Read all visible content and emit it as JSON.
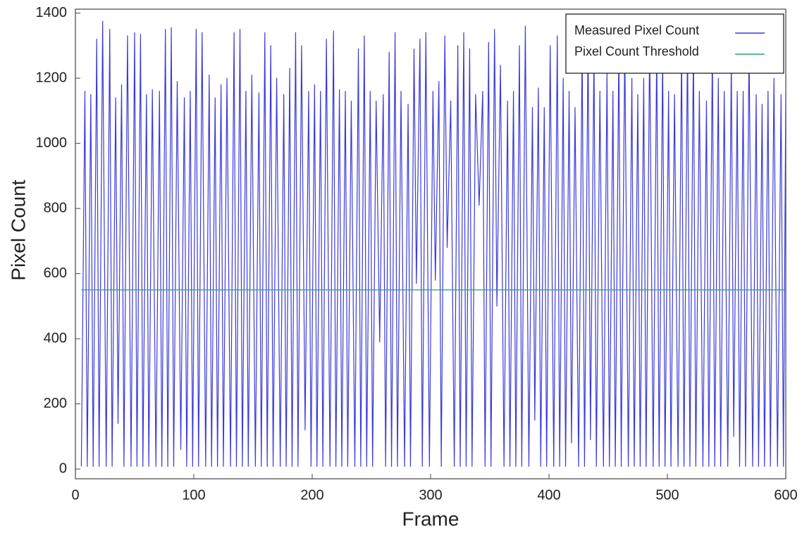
{
  "chart_data": {
    "type": "line",
    "xlabel": "Frame",
    "ylabel": "Pixel Count",
    "xlim": [
      0,
      600
    ],
    "ylim": [
      -30,
      1412
    ],
    "xticks": [
      0,
      100,
      200,
      300,
      400,
      500,
      600
    ],
    "yticks": [
      0,
      200,
      400,
      600,
      800,
      1000,
      1200,
      1400
    ],
    "grid": false,
    "legend": "upper right",
    "series": [
      {
        "name": "Measured Pixel Count",
        "color": "#3a3ad8",
        "x": [
          5,
          8,
          10,
          13,
          15,
          18,
          20,
          23,
          26,
          29,
          31,
          34,
          36,
          39,
          41,
          44,
          47,
          50,
          52,
          55,
          57,
          60,
          62,
          65,
          68,
          71,
          73,
          76,
          78,
          81,
          83,
          86,
          89,
          92,
          94,
          97,
          99,
          102,
          104,
          107,
          110,
          113,
          115,
          118,
          120,
          123,
          125,
          128,
          131,
          134,
          136,
          139,
          141,
          144,
          146,
          149,
          152,
          155,
          157,
          160,
          162,
          165,
          167,
          170,
          173,
          176,
          178,
          181,
          183,
          186,
          188,
          191,
          194,
          197,
          199,
          202,
          204,
          207,
          209,
          212,
          215,
          218,
          220,
          223,
          225,
          228,
          230,
          233,
          236,
          239,
          241,
          244,
          246,
          249,
          251,
          254,
          257,
          260,
          262,
          265,
          267,
          270,
          272,
          275,
          278,
          281,
          283,
          286,
          288,
          291,
          293,
          296,
          299,
          302,
          304,
          307,
          309,
          312,
          314,
          317,
          320,
          323,
          325,
          328,
          330,
          333,
          335,
          338,
          341,
          344,
          346,
          349,
          351,
          354,
          356,
          359,
          362,
          365,
          367,
          370,
          372,
          375,
          377,
          380,
          383,
          386,
          388,
          391,
          393,
          396,
          398,
          401,
          404,
          407,
          409,
          412,
          414,
          417,
          419,
          422,
          425,
          428,
          430,
          433,
          435,
          438,
          440,
          443,
          446,
          449,
          451,
          454,
          456,
          459,
          461,
          464,
          467,
          470,
          472,
          475,
          477,
          480,
          482,
          485,
          488,
          491,
          493,
          496,
          498,
          501,
          503,
          506,
          509,
          512,
          514,
          517,
          519,
          522,
          524,
          527,
          530,
          533,
          535,
          538,
          540,
          543,
          545,
          548,
          551,
          554,
          556,
          559,
          561,
          564,
          566,
          569,
          572,
          575,
          577,
          580,
          582,
          585,
          587,
          590,
          593,
          596,
          598,
          600
        ],
        "values": [
          8,
          1160,
          8,
          1150,
          8,
          1320,
          8,
          1375,
          8,
          1350,
          8,
          1140,
          140,
          1180,
          8,
          1330,
          8,
          1340,
          8,
          1335,
          8,
          1150,
          8,
          1165,
          8,
          1160,
          8,
          1350,
          8,
          1355,
          8,
          1190,
          60,
          1140,
          8,
          1160,
          8,
          1350,
          8,
          1340,
          8,
          1210,
          8,
          1140,
          8,
          1180,
          8,
          1200,
          8,
          1340,
          8,
          1350,
          8,
          1160,
          8,
          1210,
          8,
          1155,
          8,
          1340,
          8,
          1300,
          8,
          1200,
          8,
          1150,
          8,
          1230,
          8,
          1340,
          8,
          1300,
          120,
          1160,
          8,
          1180,
          8,
          1160,
          8,
          1320,
          8,
          1345,
          8,
          1165,
          8,
          1160,
          8,
          1130,
          8,
          1290,
          8,
          1330,
          8,
          1160,
          8,
          1130,
          390,
          1150,
          8,
          1280,
          8,
          1340,
          8,
          1160,
          8,
          1120,
          8,
          1290,
          570,
          1320,
          8,
          1340,
          8,
          1160,
          580,
          1190,
          8,
          1330,
          680,
          1130,
          8,
          1300,
          8,
          1340,
          8,
          1290,
          8,
          1150,
          810,
          1160,
          8,
          1310,
          8,
          1350,
          500,
          1240,
          8,
          1130,
          8,
          1160,
          8,
          1300,
          8,
          1360,
          8,
          1110,
          150,
          1170,
          8,
          1110,
          8,
          1300,
          8,
          1330,
          8,
          1200,
          8,
          1160,
          80,
          1110,
          8,
          1310,
          8,
          1330,
          90,
          1290,
          8,
          1160,
          8,
          1220,
          8,
          1160,
          8,
          1300,
          8,
          1310,
          8,
          1200,
          8,
          1150,
          8,
          1200,
          8,
          1320,
          8,
          1310,
          8,
          1280,
          8,
          1160,
          8,
          1150,
          8,
          1300,
          8,
          1330,
          8,
          1310,
          8,
          1160,
          8,
          1130,
          8,
          1300,
          8,
          1200,
          8,
          1160,
          8,
          1260,
          100,
          1160,
          8,
          1160,
          8,
          1300,
          8,
          1150,
          8,
          1120,
          8,
          1160,
          8,
          1200,
          8,
          1150,
          8,
          1150
        ]
      },
      {
        "name": "Pixel Count Threshold",
        "color": "#2e9e78",
        "x": [
          5,
          600
        ],
        "values": [
          550,
          550
        ]
      }
    ]
  }
}
